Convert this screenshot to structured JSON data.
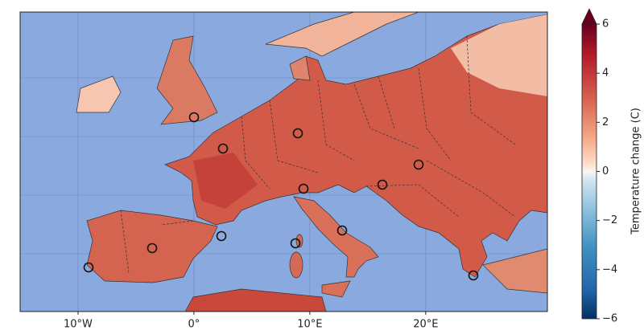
{
  "map": {
    "xlim": [
      -15,
      30.5
    ],
    "xticks": [
      {
        "value": -10,
        "label": "10°W"
      },
      {
        "value": 0,
        "label": "0°"
      },
      {
        "value": 10,
        "label": "10°E"
      },
      {
        "value": 20,
        "label": "20°E"
      }
    ],
    "colorbar": {
      "label": "Temperature change (C)",
      "lim": [
        -6,
        6
      ],
      "ticks": [
        {
          "value": -6,
          "label": "−6"
        },
        {
          "value": -4,
          "label": "−4"
        },
        {
          "value": -2,
          "label": "−2"
        },
        0,
        2,
        4,
        6
      ]
    }
  }
}
